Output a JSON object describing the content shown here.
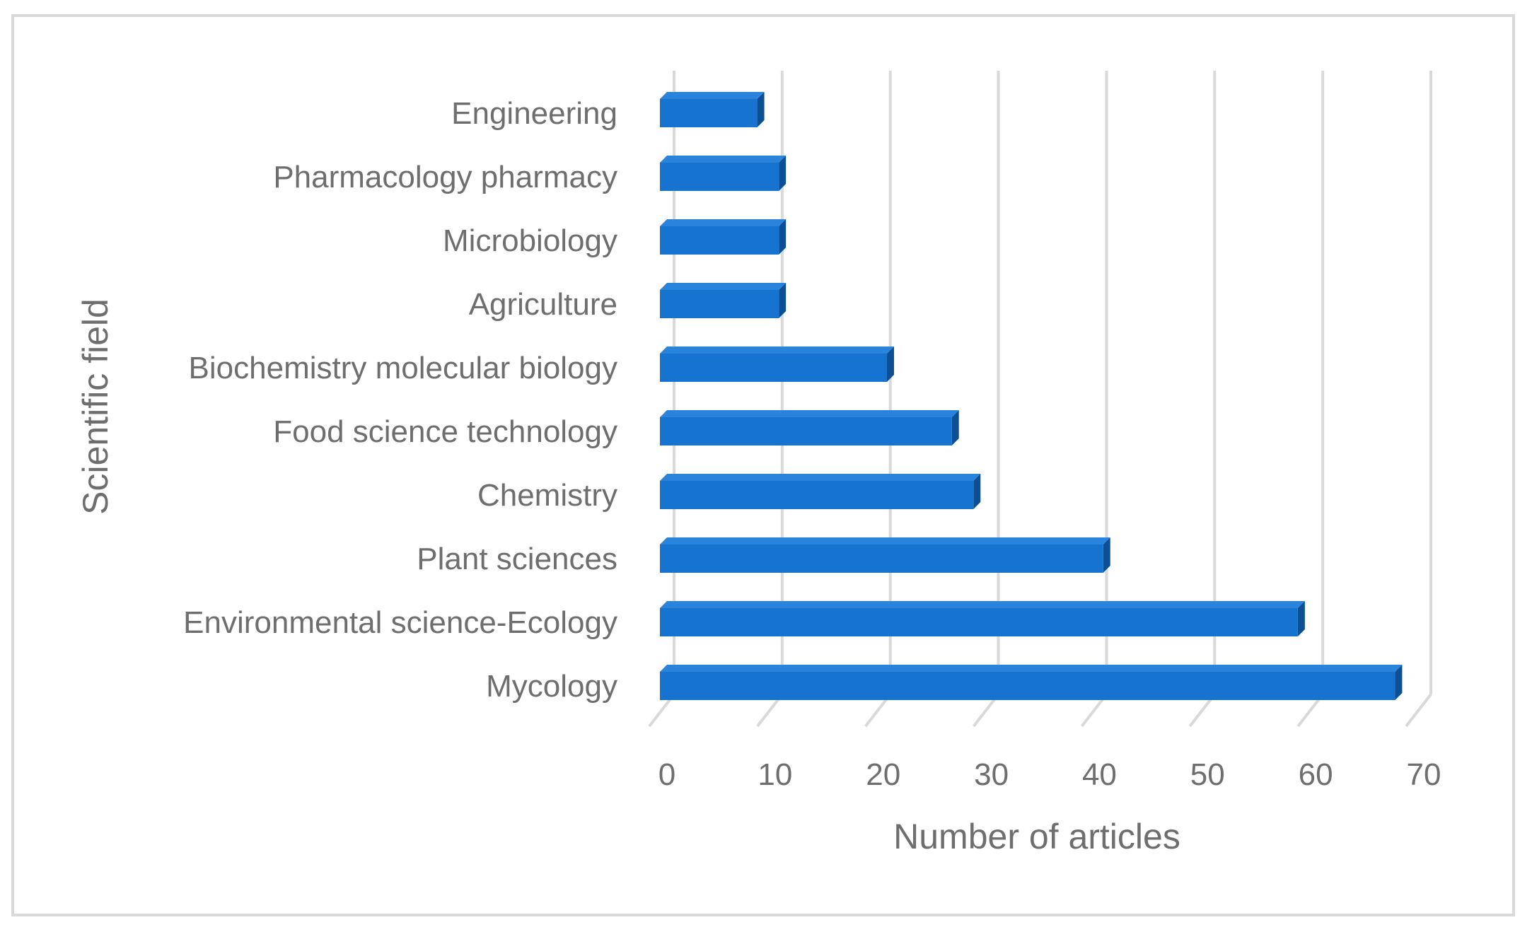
{
  "chart_data": {
    "type": "bar",
    "orientation": "horizontal",
    "style": "3d",
    "categories": [
      "Engineering",
      "Pharmacology pharmacy",
      "Microbiology",
      "Agriculture",
      "Biochemistry molecular biology",
      "Food science technology",
      "Chemistry",
      "Plant sciences",
      "Environmental science-Ecology",
      "Mycology"
    ],
    "values": [
      9,
      11,
      11,
      11,
      21,
      27,
      29,
      41,
      59,
      68
    ],
    "xlabel": "Number of articles",
    "ylabel": "Scientific field",
    "xlim": [
      0,
      70
    ],
    "xticks": [
      "0",
      "10",
      "20",
      "30",
      "40",
      "50",
      "60",
      "70"
    ],
    "grid": true,
    "legend": "none",
    "colors": {
      "bar_front": "#1673cf",
      "bar_top": "#2a84dc",
      "bar_side": "#0d4f94",
      "grid": "#d9d9d9",
      "text": "#6e6e6e"
    }
  }
}
